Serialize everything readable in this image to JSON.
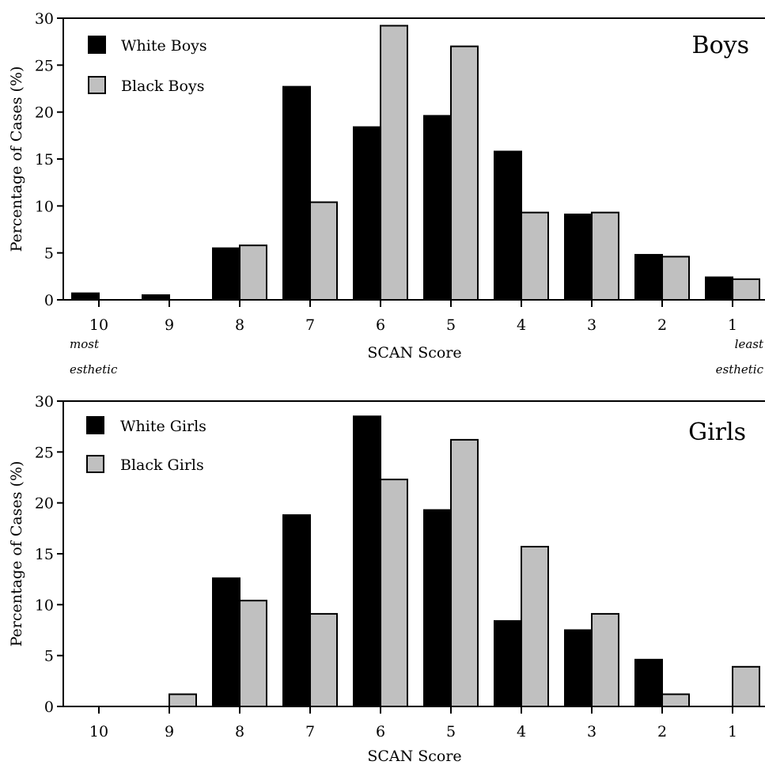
{
  "chart_data": [
    {
      "type": "bar",
      "title": "Boys",
      "xlabel": "SCAN Score",
      "ylabel": "Percentage of Cases (%)",
      "ylim": [
        0,
        30
      ],
      "yticks": [
        "0",
        "5",
        "10",
        "15",
        "20",
        "25",
        "30"
      ],
      "categories": [
        "10",
        "9",
        "8",
        "7",
        "6",
        "5",
        "4",
        "3",
        "2",
        "1"
      ],
      "series": [
        {
          "name": "White Boys",
          "color": "#000000",
          "values": [
            0.7,
            0.5,
            5.5,
            22.7,
            18.4,
            19.6,
            15.8,
            9.1,
            4.8,
            2.4
          ]
        },
        {
          "name": "Black Boys",
          "color": "#c0c0c0",
          "values": [
            0,
            0,
            5.8,
            10.4,
            29.2,
            27.0,
            9.3,
            9.3,
            4.6,
            2.2
          ]
        }
      ],
      "annotations": {
        "left_line1": "most",
        "left_line2": "esthetic",
        "right_line1": "least",
        "right_line2": "esthetic"
      },
      "legend_position": "top-left",
      "grid": false
    },
    {
      "type": "bar",
      "title": "Girls",
      "xlabel": "SCAN Score",
      "ylabel": "Percentage of Cases (%)",
      "ylim": [
        0,
        30
      ],
      "yticks": [
        "0",
        "5",
        "10",
        "15",
        "20",
        "25",
        "30"
      ],
      "categories": [
        "10",
        "9",
        "8",
        "7",
        "6",
        "5",
        "4",
        "3",
        "2",
        "1"
      ],
      "series": [
        {
          "name": "White Girls",
          "color": "#000000",
          "values": [
            0,
            0,
            12.6,
            18.8,
            28.5,
            19.3,
            8.4,
            7.5,
            4.6,
            0
          ]
        },
        {
          "name": "Black Girls",
          "color": "#c0c0c0",
          "values": [
            0,
            1.2,
            10.4,
            9.1,
            22.3,
            26.2,
            15.7,
            9.1,
            1.2,
            3.9
          ]
        }
      ],
      "legend_position": "top-left",
      "grid": false
    }
  ]
}
